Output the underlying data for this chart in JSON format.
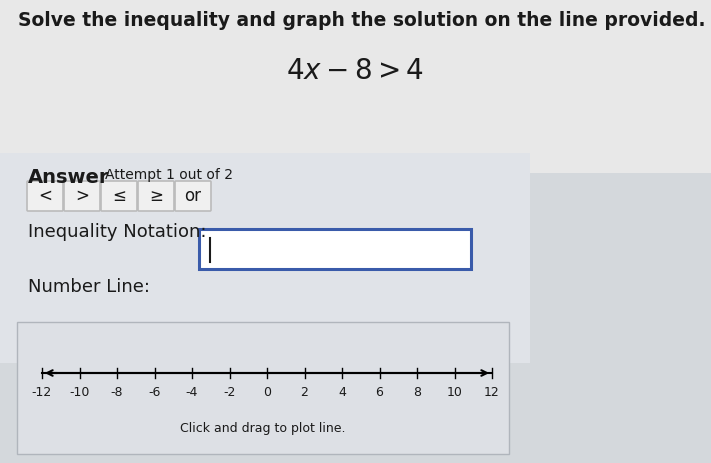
{
  "background_color": "#d4d8dc",
  "upper_panel_color": "#e8e8e8",
  "lower_panel_color": "#c8cdd4",
  "title_text": "Solve the inequality and graph the solution on the line provided.",
  "equation_text": "$4x - 8 > 4$",
  "answer_label": "Answer",
  "attempt_text": "Attempt 1 out of 2",
  "buttons": [
    "<",
    ">",
    "≤",
    "≥",
    "or"
  ],
  "inequality_label": "Inequality Notation:",
  "number_line_label": "Number Line:",
  "number_line_ticks": [
    -12,
    -10,
    -8,
    -6,
    -4,
    -2,
    0,
    2,
    4,
    6,
    8,
    10,
    12
  ],
  "number_line_caption": "Click and drag to plot line.",
  "number_line_box_bg": "#dde0e5",
  "input_box_color": "#3a5baa",
  "button_bg": "#f0f0f0",
  "button_border": "#bbbbbb",
  "text_color": "#1a1a1a",
  "title_fontsize": 13.5,
  "equation_fontsize": 20,
  "answer_fontsize": 14,
  "attempt_fontsize": 10,
  "label_fontsize": 13,
  "button_fontsize": 12,
  "small_fontsize": 9
}
